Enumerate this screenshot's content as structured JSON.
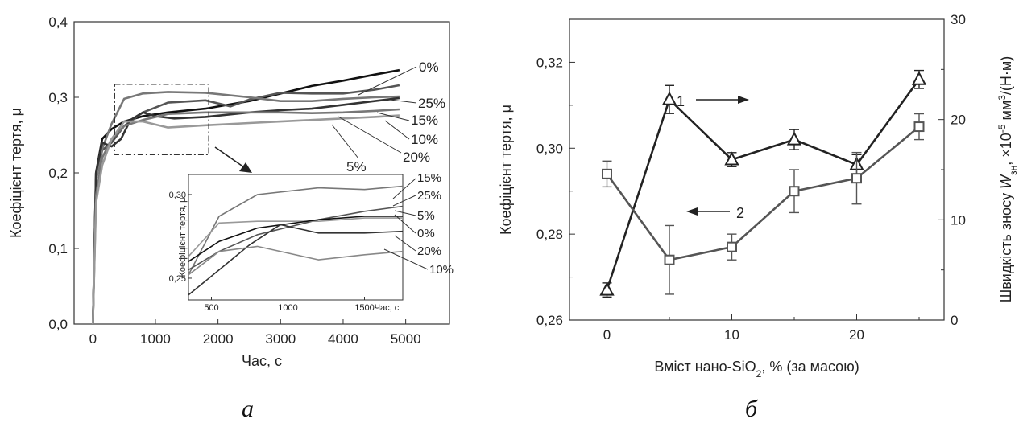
{
  "captions": {
    "a": "а",
    "b": "б"
  },
  "chart_data": [
    {
      "type": "line",
      "xlabel": "Час, с",
      "ylabel": "Коефіцієнт тертя, μ",
      "xlim": [
        0,
        5000
      ],
      "ylim": [
        0,
        0.4
      ],
      "xticks": [
        0,
        1000,
        2000,
        3000,
        4000,
        5000
      ],
      "xtick_labels": [
        "0",
        "1000",
        "2000",
        "3000",
        "4000",
        "5000"
      ],
      "yticks": [
        0,
        0.1,
        0.2,
        0.3,
        0.4
      ],
      "ytick_labels": [
        "0,0",
        "0,1",
        "0,2",
        "0,3",
        "0,4"
      ],
      "series": [
        {
          "name": "0%",
          "color": "#111111",
          "x": [
            0,
            50,
            150,
            300,
            500,
            800,
            1200,
            1800,
            2500,
            3000,
            3500,
            4000,
            4500,
            4900
          ],
          "y": [
            0,
            0.2,
            0.245,
            0.258,
            0.268,
            0.275,
            0.28,
            0.285,
            0.295,
            0.305,
            0.315,
            0.322,
            0.33,
            0.336
          ]
        },
        {
          "name": "25%",
          "color": "#555555",
          "x": [
            0,
            50,
            150,
            300,
            500,
            800,
            1200,
            1800,
            2200,
            2500,
            3000,
            3500,
            4000,
            4500,
            4900
          ],
          "y": [
            0,
            0.19,
            0.23,
            0.24,
            0.262,
            0.28,
            0.293,
            0.296,
            0.288,
            0.297,
            0.306,
            0.305,
            0.305,
            0.31,
            0.316
          ]
        },
        {
          "name": "15%",
          "color": "#777777",
          "x": [
            0,
            50,
            150,
            300,
            500,
            800,
            1200,
            1800,
            2500,
            3000,
            3500,
            4000,
            4500,
            4900
          ],
          "y": [
            0,
            0.19,
            0.232,
            0.265,
            0.298,
            0.305,
            0.307,
            0.306,
            0.3,
            0.295,
            0.295,
            0.298,
            0.3,
            0.301
          ]
        },
        {
          "name": "10%",
          "color": "#333333",
          "x": [
            0,
            50,
            150,
            300,
            450,
            600,
            800,
            1000,
            1300,
            1800,
            2500,
            3000,
            3500,
            4000,
            4500,
            4900
          ],
          "y": [
            0,
            0.2,
            0.24,
            0.235,
            0.245,
            0.27,
            0.28,
            0.275,
            0.272,
            0.274,
            0.28,
            0.283,
            0.285,
            0.29,
            0.295,
            0.299
          ]
        },
        {
          "name": "20%",
          "color": "#777777",
          "x": [
            0,
            50,
            150,
            300,
            500,
            800,
            1200,
            1800,
            2500,
            3000,
            3500,
            4000,
            4500,
            4900
          ],
          "y": [
            0,
            0.17,
            0.22,
            0.245,
            0.262,
            0.27,
            0.278,
            0.28,
            0.28,
            0.28,
            0.279,
            0.28,
            0.282,
            0.284
          ]
        },
        {
          "name": "5%",
          "color": "#999999",
          "x": [
            0,
            50,
            150,
            300,
            500,
            800,
            1200,
            1800,
            2500,
            3000,
            3500,
            4000,
            4500,
            4900
          ],
          "y": [
            0,
            0.16,
            0.21,
            0.245,
            0.268,
            0.268,
            0.26,
            0.263,
            0.266,
            0.268,
            0.27,
            0.272,
            0.274,
            0.276
          ]
        }
      ],
      "inset": {
        "ylabel": "Коефіцієнт тертя, μ",
        "xlabel": "Час, с",
        "xlim": [
          350,
          1750
        ],
        "ylim": [
          0.237,
          0.312
        ],
        "xticks": [
          500,
          1000,
          1500
        ],
        "xtick_labels": [
          "500",
          "1000",
          "1500"
        ],
        "yticks": [
          0.25,
          0.3
        ],
        "ytick_labels": [
          "0,25",
          "0,30"
        ],
        "series": [
          {
            "name": "15%",
            "color": "#777777",
            "x": [
              350,
              550,
              800,
              1200,
              1500,
              1750
            ],
            "y": [
              0.252,
              0.287,
              0.3,
              0.304,
              0.303,
              0.305
            ]
          },
          {
            "name": "25%",
            "color": "#555555",
            "x": [
              350,
              550,
              800,
              1200,
              1500,
              1750
            ],
            "y": [
              0.255,
              0.266,
              0.276,
              0.285,
              0.29,
              0.293
            ]
          },
          {
            "name": "5%",
            "color": "#999999",
            "x": [
              350,
              550,
              800,
              1200,
              1500,
              1750
            ],
            "y": [
              0.263,
              0.283,
              0.284,
              0.284,
              0.286,
              0.286
            ]
          },
          {
            "name": "0%",
            "color": "#111111",
            "x": [
              350,
              550,
              800,
              1200,
              1500,
              1750
            ],
            "y": [
              0.26,
              0.272,
              0.28,
              0.285,
              0.287,
              0.287
            ]
          },
          {
            "name": "20%",
            "color": "#333333",
            "x": [
              350,
              550,
              750,
              950,
              1050,
              1200,
              1500,
              1750
            ],
            "y": [
              0.24,
              0.255,
              0.27,
              0.282,
              0.28,
              0.277,
              0.277,
              0.278
            ]
          },
          {
            "name": "10%",
            "color": "#888888",
            "x": [
              350,
              550,
              800,
              1200,
              1500,
              1750
            ],
            "y": [
              0.252,
              0.266,
              0.269,
              0.261,
              0.264,
              0.266
            ]
          }
        ]
      }
    },
    {
      "type": "line",
      "xlabel": "Вміст нано-SiO",
      "xlabel_sub": "2",
      "xlabel_tail": ", % (за масою)",
      "ylabel": "Коефіцієнт тертя, μ",
      "y2label_pre": "Швидкість зносу ",
      "y2label_w": "W",
      "y2label_wsub": "зн",
      "y2label_mid": ", ×10",
      "y2label_exp1": "-5",
      "y2label_mid2": " мм",
      "y2label_exp2": "3",
      "y2label_tail": "/(Н·м)",
      "xlim": [
        -3,
        27
      ],
      "ylim": [
        0.26,
        0.33
      ],
      "y2lim": [
        0,
        30
      ],
      "xticks": [
        0,
        10,
        20
      ],
      "xtick_labels": [
        "0",
        "10",
        "20"
      ],
      "yticks": [
        0.26,
        0.28,
        0.3,
        0.32
      ],
      "ytick_labels": [
        "0,26",
        "0,28",
        "0,30",
        "0,32"
      ],
      "y2ticks": [
        0,
        10,
        20,
        30
      ],
      "y2tick_labels": [
        "0",
        "10",
        "20",
        "30"
      ],
      "series": [
        {
          "name": "1",
          "axis": "right",
          "marker": "triangle",
          "color": "#222222",
          "x": [
            0,
            5,
            10,
            15,
            20,
            25
          ],
          "y": [
            3,
            22,
            16,
            18,
            15.5,
            24
          ],
          "err": [
            0.7,
            1.4,
            0.7,
            1.0,
            1.0,
            0.9
          ]
        },
        {
          "name": "2",
          "axis": "left",
          "marker": "square",
          "color": "#555555",
          "x": [
            0,
            5,
            10,
            15,
            20,
            25
          ],
          "y": [
            0.294,
            0.274,
            0.277,
            0.29,
            0.293,
            0.305
          ],
          "err": [
            0.003,
            0.008,
            0.003,
            0.005,
            0.006,
            0.003
          ]
        }
      ]
    }
  ]
}
